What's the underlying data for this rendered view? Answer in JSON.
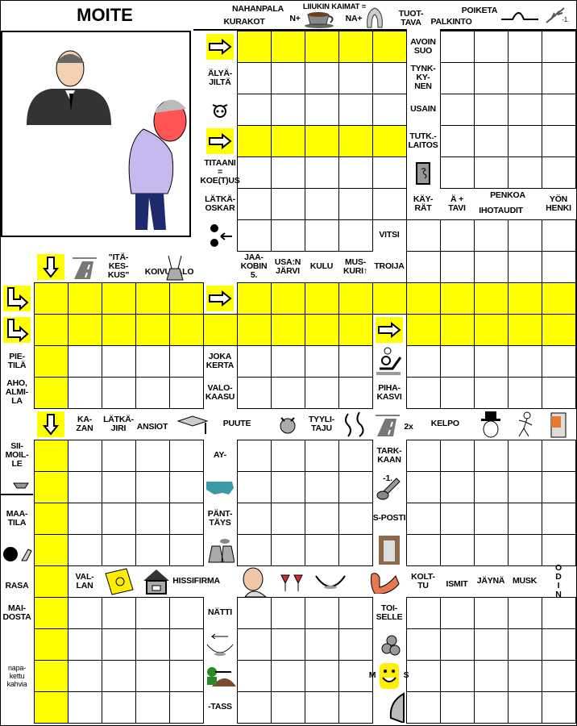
{
  "title": "MOITE",
  "top_clues": {
    "nahanpala": "NAHANPALA",
    "kurakot": "KURAKOT",
    "liukin_kaimat": "LIIUKIN KAIMAT =",
    "n_plus": "N+",
    "na_plus": "NA+",
    "tuottava": "TUOT-\nTAVA",
    "poiketa": "POIKETA",
    "palkinto": "PALKINTO",
    "minus_one": "-1."
  },
  "clues": {
    "alyajilta": "ÄLYÄ-\nJILTÄ",
    "titaani": "TITAANI\n=\nKOE(T)US",
    "latka_oskar": "LÄTKÄ-\nOSKAR",
    "avoin_suo": "AVOIN\nSUO",
    "tynkkynen": "TYNK-\nKY-\nNEN",
    "usain": "USAIN",
    "tutk_laitos": "TUTK.-\nLAITOS",
    "kayrat": "KÄY-\nRÄT",
    "a_tavi": "Ä +\nTAVI",
    "penkoa": "PENKOA",
    "ihotaudit": "IHOTAUDIT",
    "yon_henki": "YÖN\nHENKI",
    "vitsi": "VITSI",
    "itakeskus": "\"ITÄ-\nKES-\nKUS\"",
    "koivusalo": "KOIVUSALO",
    "jaakobin": "JAA-\nKOBIN\n5.",
    "usan_jarvi": "USA:N\nJÄRVI",
    "kulu": "KULU",
    "muskuri": "MUS-\nKURI↑",
    "troija": "TROIJA",
    "pietila": "PIE-\nTILÄ",
    "aho_almila": "AHO,\nALMI-\nLA",
    "joka_kerta": "JOKA\nKERTA",
    "valokaasu": "VALO-\nKAASU",
    "pihakasvi": "PIHA-\nKASVI",
    "kazan": "KA-\nZAN",
    "latkajiri": "LÄTKÄ-\nJIRI",
    "ansiot": "ANSIOT",
    "puute": "PUUTE",
    "tyylitaju": "TYYLI-\nTAJU",
    "two_x": "2x",
    "kelpo": "KELPO",
    "siimoille": "SII-\nMOIL-\nLE",
    "ay": "AY-",
    "tarkkaan": "TARK-\nKAAN",
    "bolt_minus_one": "-1.",
    "maatila": "MAA-\nTILA",
    "panttays": "PÄNT-\nTÄYS",
    "s_posti": "S-POSTI",
    "rasa": "RASA",
    "vallan": "VAL-\nLAN",
    "hissifirma": "HISSIFIRMA",
    "kolttu": "KOLT-\nTU",
    "ismit": "ISMIT",
    "jayna": "JÄYNÄ",
    "musk": "MUSK",
    "odin": "O\nD\nI\nN",
    "maidosta": "MAI-\nDOSTA",
    "natti": "NÄTTI",
    "toiselle": "TOI-\nSELLE",
    "napakettu": "napa-\nkettu\nkahvia",
    "tass": "-TASS",
    "smiley_m": "M",
    "smiley_s": "S"
  },
  "icons": [
    "arrow-right-icon",
    "arrow-down-icon",
    "double-arrow-icon",
    "pig-face-icon",
    "book-icon",
    "bugs-icon",
    "road-icon",
    "tree-stump-icon",
    "table-icon",
    "animal-icon",
    "squiggle-icon",
    "man-hat-icon",
    "stick-figure-icon",
    "can-icon",
    "anvil-icon",
    "usa-map-icon",
    "bolt-icon",
    "bowling-icon",
    "clothes-icon",
    "milk-can-icon",
    "card-icon",
    "house-icon",
    "man-face-icon",
    "glasses-icon",
    "bowl-icon",
    "arm-icon",
    "bowl-arrow-icon",
    "flower-icon",
    "soldier-icon",
    "smiley-icon",
    "bird-icon",
    "cup-icon",
    "collar-icon",
    "curve-icon",
    "wheat-icon",
    "lamp-person-icon"
  ],
  "colors": {
    "highlight": "#ffff00",
    "grid": "#000000"
  }
}
